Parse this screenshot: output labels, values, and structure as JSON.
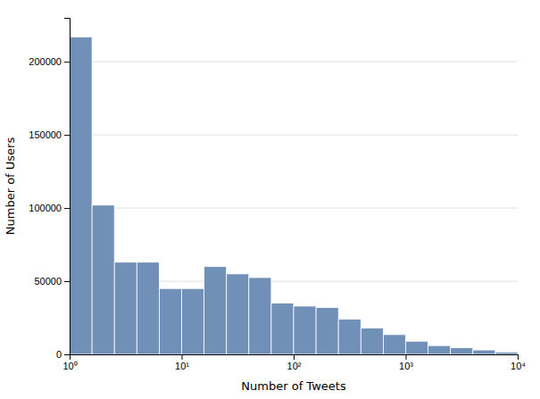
{
  "chart_data": {
    "type": "histogram",
    "bins": [
      1,
      1.5848931924611136,
      2.51188643150958,
      3.9810717055349722,
      6.309573444801933,
      10,
      15.848931924611142,
      25.118864315095795,
      39.81071705534972,
      63.09573444801933,
      100,
      158.48931924611142,
      251.18864315095797,
      398.1071705534973,
      630.957344480193,
      1000,
      1584.893192461114,
      2511.886431509582,
      3981.0717055349733,
      6309.573444801938,
      10000
    ],
    "values": [
      217000,
      102000,
      63000,
      63000,
      45000,
      45000,
      60000,
      55000,
      52500,
      35000,
      33000,
      32000,
      24000,
      18000,
      13500,
      9000,
      6000,
      4500,
      3000,
      1500
    ],
    "color": "#7090b8",
    "xlabel": "Number of Tweets",
    "ylabel": "Number of Users",
    "log": "x",
    "xlim": [
      1,
      10000
    ],
    "xticks": [
      {
        "value": 1,
        "label": "10⁰"
      },
      {
        "value": 10,
        "label": "10¹"
      },
      {
        "value": 100,
        "label": "10²"
      },
      {
        "value": 1000,
        "label": "10³"
      },
      {
        "value": 10000,
        "label": "10⁴"
      }
    ],
    "ylim": [
      0,
      230000
    ],
    "yticks": [
      0,
      50000,
      100000,
      150000,
      200000
    ],
    "grid": true
  }
}
